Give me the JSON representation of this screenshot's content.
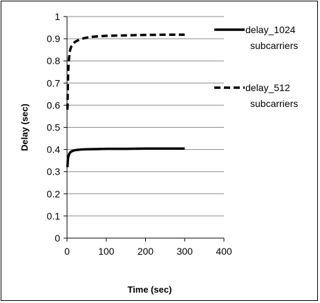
{
  "chart_data": {
    "type": "line",
    "title": "",
    "xlabel": "Time (sec)",
    "ylabel": "Delay (sec)",
    "xlim": [
      0,
      400
    ],
    "ylim": [
      0,
      1
    ],
    "x_ticks": [
      "0",
      "100",
      "200",
      "300",
      "400"
    ],
    "y_ticks": [
      "0",
      "0.1",
      "0.2",
      "0.3",
      "0.4",
      "0.5",
      "0.6",
      "0.7",
      "0.8",
      "0.9",
      "1"
    ],
    "grid": "horizontal",
    "legend_position": "right",
    "series": [
      {
        "name": "delay_1024 subcarriers",
        "legend_lines": [
          "delay_1024",
          "subcarriers"
        ],
        "style": "solid",
        "color": "#000000",
        "x": [
          1,
          2,
          3,
          5,
          8,
          12,
          18,
          25,
          35,
          50,
          75,
          100,
          150,
          200,
          250,
          300
        ],
        "y": [
          0.32,
          0.35,
          0.365,
          0.378,
          0.387,
          0.392,
          0.396,
          0.398,
          0.4,
          0.401,
          0.402,
          0.403,
          0.403,
          0.404,
          0.404,
          0.404
        ]
      },
      {
        "name": "delay_512 subcarriers",
        "legend_lines": [
          "delay_512",
          "subcarriers"
        ],
        "style": "dashed",
        "color": "#000000",
        "x": [
          1,
          2,
          3,
          4,
          6,
          8,
          11,
          15,
          20,
          27,
          35,
          45,
          60,
          80,
          100,
          150,
          200,
          250,
          300
        ],
        "y": [
          0.58,
          0.68,
          0.75,
          0.79,
          0.83,
          0.85,
          0.865,
          0.875,
          0.885,
          0.892,
          0.898,
          0.903,
          0.908,
          0.911,
          0.913,
          0.915,
          0.917,
          0.918,
          0.918
        ]
      }
    ]
  }
}
